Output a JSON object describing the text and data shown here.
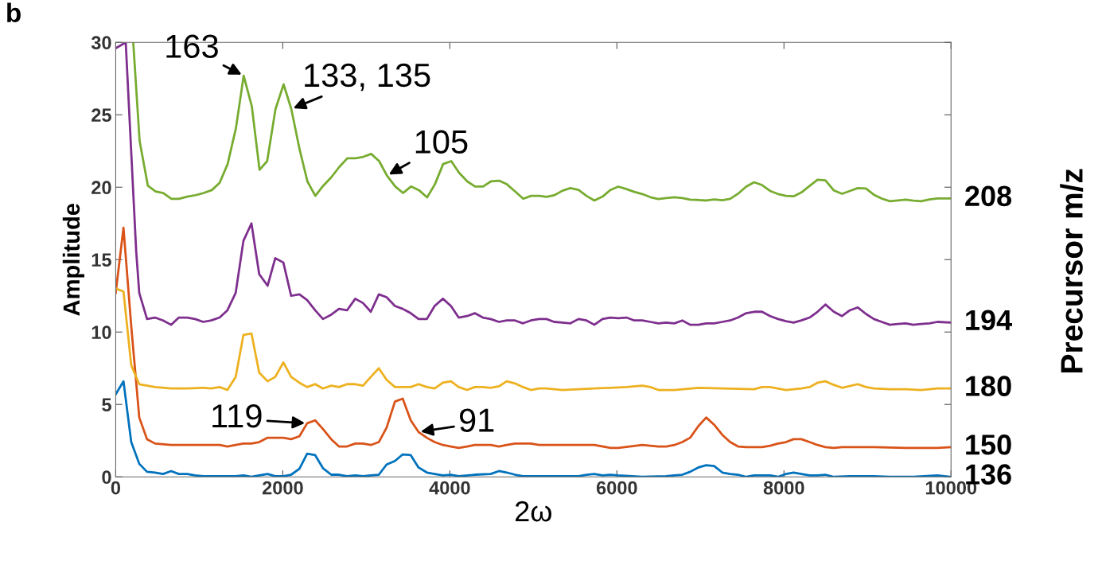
{
  "chart_data": {
    "type": "line",
    "xlabel": "2ω",
    "ylabel": "Amplitude",
    "y2label": "Precursor m/z",
    "xlim": [
      0,
      10000
    ],
    "ylim": [
      0,
      30
    ],
    "xticks": [
      0,
      2000,
      4000,
      6000,
      8000,
      10000
    ],
    "yticks": [
      0,
      5,
      10,
      15,
      20,
      25,
      30
    ],
    "grid": false,
    "legend": false,
    "marker": "none",
    "line_style": "solid",
    "annotations": [
      "b",
      {
        "text": "163",
        "x": 1532,
        "y": 27.7
      },
      {
        "text": "133, 135",
        "x": 2102,
        "y": 25.4
      },
      {
        "text": "105",
        "x": 3247,
        "y": 20.8
      },
      {
        "text": "119",
        "x": 2292,
        "y": 3.7
      },
      {
        "text": "91",
        "x": 3625,
        "y": 3.1
      }
    ],
    "series": [
      {
        "name": "136",
        "color": "#0072bd",
        "x": [
          0,
          93,
          186,
          282,
          375,
          471,
          567,
          663,
          756,
          856,
          949,
          1048,
          1244,
          1436,
          1529,
          1625,
          1718,
          1818,
          1910,
          2007,
          2100,
          2199,
          2292,
          2388,
          2481,
          2580,
          2673,
          2769,
          2868,
          2961,
          3054,
          3150,
          3243,
          3343,
          3436,
          3532,
          3625,
          3725,
          3818,
          3917,
          4013,
          4106,
          4299,
          4488,
          4588,
          4681,
          4780,
          4876,
          5069,
          5349,
          5541,
          5636,
          5730,
          5828,
          5922,
          6017,
          6303,
          6590,
          6688,
          6783,
          6877,
          6975,
          7069,
          7164,
          7262,
          7356,
          7450,
          7548,
          7643,
          7835,
          7929,
          8024,
          8115,
          8209,
          8307,
          8402,
          8496,
          8597,
          8789,
          9076,
          9268,
          9548,
          9836,
          10000
        ],
        "values": [
          5.7,
          6.6,
          2.4,
          0.9,
          0.35,
          0.3,
          0.2,
          0.4,
          0.2,
          0.2,
          0.1,
          0.05,
          0.05,
          0.05,
          0.1,
          0.0,
          0.1,
          0.2,
          0.05,
          0.05,
          0.15,
          0.55,
          1.6,
          1.5,
          0.6,
          0.15,
          0.15,
          0.05,
          0.1,
          0.05,
          0.1,
          0.15,
          0.85,
          1.1,
          1.55,
          1.5,
          0.65,
          0.3,
          0.2,
          0.1,
          0.15,
          0.05,
          0.15,
          0.2,
          0.4,
          0.3,
          0.15,
          0.05,
          0.05,
          0.05,
          0.05,
          0.15,
          0.2,
          0.1,
          0.15,
          0.1,
          0.0,
          0.05,
          0.1,
          0.15,
          0.35,
          0.65,
          0.8,
          0.75,
          0.3,
          0.2,
          0.15,
          0.0,
          0.1,
          0.1,
          0.0,
          0.2,
          0.3,
          0.2,
          0.1,
          0.1,
          0.15,
          0.0,
          0.05,
          0.05,
          0.0,
          0.0,
          0.1,
          0.0
        ]
      },
      {
        "name": "150",
        "color": "#d95319",
        "x": [
          0,
          93,
          186,
          282,
          375,
          471,
          663,
          856,
          1048,
          1144,
          1244,
          1337,
          1436,
          1529,
          1625,
          1718,
          1818,
          1910,
          2007,
          2100,
          2199,
          2292,
          2388,
          2481,
          2580,
          2673,
          2769,
          2868,
          2961,
          3054,
          3150,
          3243,
          3343,
          3436,
          3532,
          3625,
          3725,
          3818,
          3917,
          4013,
          4106,
          4206,
          4299,
          4395,
          4488,
          4588,
          4681,
          4780,
          4876,
          4969,
          5069,
          5157,
          5349,
          5443,
          5541,
          5730,
          5922,
          6017,
          6303,
          6496,
          6590,
          6688,
          6783,
          6877,
          6975,
          7069,
          7164,
          7262,
          7356,
          7450,
          7548,
          7737,
          7835,
          7929,
          8024,
          8115,
          8209,
          8307,
          8402,
          8496,
          8597,
          8695,
          9076,
          9457,
          9642,
          9836,
          10000
        ],
        "values": [
          12.7,
          17.2,
          10.4,
          4.1,
          2.6,
          2.3,
          2.2,
          2.2,
          2.2,
          2.2,
          2.2,
          2.1,
          2.2,
          2.3,
          2.3,
          2.4,
          2.7,
          2.7,
          2.7,
          2.6,
          2.8,
          3.7,
          3.9,
          3.3,
          2.6,
          2.1,
          2.1,
          2.3,
          2.3,
          2.2,
          2.4,
          3.4,
          5.2,
          5.4,
          3.9,
          3.1,
          2.7,
          2.4,
          2.2,
          2.1,
          2.0,
          2.1,
          2.2,
          2.2,
          2.2,
          2.1,
          2.2,
          2.3,
          2.3,
          2.3,
          2.2,
          2.2,
          2.2,
          2.2,
          2.2,
          2.2,
          2.0,
          2.0,
          2.2,
          2.1,
          2.1,
          2.2,
          2.4,
          2.7,
          3.5,
          4.1,
          3.6,
          2.9,
          2.4,
          2.1,
          2.05,
          2.05,
          2.15,
          2.3,
          2.4,
          2.6,
          2.6,
          2.4,
          2.2,
          2.05,
          2.0,
          2.05,
          2.05,
          2.0,
          2.0,
          2.0,
          2.05
        ]
      },
      {
        "name": "180",
        "color": "#edb120",
        "x": [
          0,
          93,
          186,
          282,
          471,
          663,
          856,
          1048,
          1144,
          1244,
          1337,
          1436,
          1529,
          1625,
          1718,
          1818,
          1910,
          2007,
          2100,
          2199,
          2292,
          2388,
          2481,
          2580,
          2673,
          2769,
          2868,
          2961,
          3054,
          3150,
          3243,
          3343,
          3436,
          3532,
          3625,
          3725,
          3818,
          3917,
          4013,
          4106,
          4206,
          4299,
          4395,
          4488,
          4588,
          4681,
          4780,
          4876,
          4969,
          5069,
          5157,
          5349,
          5541,
          5730,
          5922,
          6115,
          6303,
          6401,
          6496,
          6688,
          6975,
          7262,
          7643,
          7737,
          7835,
          8024,
          8209,
          8307,
          8402,
          8496,
          8597,
          8695,
          8884,
          8982,
          9076,
          9268,
          9457,
          9642,
          9836,
          10000
        ],
        "values": [
          13.0,
          12.8,
          7.7,
          6.4,
          6.2,
          6.1,
          6.1,
          6.15,
          6.1,
          6.2,
          6.0,
          6.9,
          9.8,
          9.9,
          7.2,
          6.6,
          6.9,
          7.9,
          6.9,
          6.5,
          6.2,
          6.4,
          6.1,
          6.3,
          6.2,
          6.4,
          6.4,
          6.3,
          6.9,
          7.5,
          6.7,
          6.2,
          6.2,
          6.2,
          6.4,
          6.2,
          6.1,
          6.5,
          6.6,
          6.2,
          6.0,
          6.2,
          6.2,
          6.15,
          6.25,
          6.6,
          6.45,
          6.2,
          6.0,
          6.1,
          6.1,
          6.0,
          6.05,
          6.1,
          6.15,
          6.2,
          6.3,
          6.2,
          6.0,
          6.0,
          6.15,
          6.1,
          6.05,
          6.2,
          6.2,
          6.0,
          6.1,
          6.2,
          6.5,
          6.6,
          6.35,
          6.15,
          6.4,
          6.2,
          6.1,
          6.05,
          6.05,
          6.0,
          6.1,
          6.1
        ]
      },
      {
        "name": "194",
        "color": "#7e2f8e",
        "x": [
          0,
          120,
          245,
          282,
          375,
          471,
          567,
          663,
          756,
          856,
          949,
          1048,
          1144,
          1244,
          1337,
          1436,
          1529,
          1625,
          1718,
          1818,
          1910,
          2007,
          2100,
          2199,
          2292,
          2388,
          2481,
          2580,
          2673,
          2769,
          2868,
          2961,
          3054,
          3150,
          3243,
          3343,
          3436,
          3532,
          3625,
          3725,
          3818,
          3917,
          4013,
          4106,
          4206,
          4299,
          4395,
          4488,
          4588,
          4681,
          4780,
          4876,
          4969,
          5069,
          5157,
          5248,
          5349,
          5443,
          5541,
          5636,
          5730,
          5828,
          5922,
          6017,
          6115,
          6209,
          6303,
          6401,
          6496,
          6590,
          6688,
          6783,
          6877,
          6975,
          7069,
          7164,
          7262,
          7356,
          7450,
          7548,
          7643,
          7737,
          7835,
          7929,
          8024,
          8115,
          8209,
          8307,
          8402,
          8496,
          8597,
          8695,
          8789,
          8884,
          8982,
          9076,
          9170,
          9268,
          9363,
          9457,
          9548,
          9642,
          9741,
          9836,
          10000
        ],
        "values": [
          29.6,
          30,
          15.6,
          12.7,
          10.9,
          11.0,
          10.8,
          10.5,
          11.0,
          11.0,
          10.9,
          10.7,
          10.8,
          11.0,
          11.5,
          12.7,
          16.3,
          17.5,
          14.0,
          13.2,
          15.1,
          14.8,
          12.5,
          12.6,
          12.2,
          11.5,
          10.9,
          11.2,
          11.6,
          11.5,
          12.3,
          12.0,
          11.4,
          12.6,
          12.4,
          11.8,
          11.6,
          11.3,
          10.9,
          10.9,
          11.8,
          12.3,
          11.8,
          11.0,
          11.1,
          11.3,
          11.0,
          10.9,
          10.7,
          10.8,
          10.8,
          10.6,
          10.8,
          10.9,
          10.9,
          10.7,
          10.65,
          10.6,
          10.9,
          10.8,
          10.5,
          10.9,
          11.0,
          10.95,
          11.0,
          10.8,
          10.8,
          10.7,
          10.6,
          10.65,
          10.6,
          10.8,
          10.5,
          10.5,
          10.6,
          10.6,
          10.7,
          10.8,
          11.0,
          11.3,
          11.4,
          11.4,
          11.1,
          10.9,
          10.75,
          10.65,
          10.8,
          11.0,
          11.4,
          11.9,
          11.4,
          11.1,
          11.5,
          11.7,
          11.25,
          10.9,
          10.7,
          10.5,
          10.55,
          10.6,
          10.5,
          10.55,
          10.6,
          10.7,
          10.65
        ]
      },
      {
        "name": "208",
        "color": "#77ac30",
        "x": [
          210,
          286,
          385,
          478,
          570,
          667,
          756,
          856,
          955,
          1052,
          1151,
          1244,
          1340,
          1440,
          1532,
          1629,
          1722,
          1813,
          1913,
          2010,
          2102,
          2202,
          2295,
          2390,
          2484,
          2583,
          2677,
          2773,
          2872,
          2965,
          3058,
          3154,
          3247,
          3347,
          3440,
          3535,
          3629,
          3728,
          3821,
          3920,
          4017,
          4110,
          4209,
          4302,
          4398,
          4491,
          4590,
          4683,
          4783,
          4879,
          4972,
          5071,
          5157,
          5248,
          5349,
          5443,
          5541,
          5636,
          5730,
          5828,
          5922,
          6017,
          6115,
          6209,
          6303,
          6401,
          6496,
          6590,
          6688,
          6783,
          6877,
          6975,
          7069,
          7164,
          7262,
          7356,
          7450,
          7548,
          7643,
          7737,
          7835,
          7929,
          8024,
          8115,
          8209,
          8307,
          8402,
          8496,
          8597,
          8695,
          8789,
          8884,
          8982,
          9076,
          9170,
          9268,
          9363,
          9457,
          9548,
          9642,
          9741,
          9836,
          10000
        ],
        "values": [
          30,
          23.2,
          20.1,
          19.7,
          19.6,
          19.2,
          19.2,
          19.35,
          19.45,
          19.6,
          19.8,
          20.3,
          21.6,
          24.1,
          27.7,
          25.6,
          21.2,
          21.8,
          25.4,
          27.1,
          25.4,
          22.6,
          20.4,
          19.4,
          20.1,
          20.7,
          21.4,
          22.0,
          22.0,
          22.1,
          22.3,
          21.8,
          20.8,
          20.05,
          19.6,
          20.05,
          19.8,
          19.3,
          20.2,
          21.6,
          21.8,
          21.0,
          20.4,
          20.05,
          20.05,
          20.4,
          20.45,
          20.2,
          19.7,
          19.2,
          19.4,
          19.4,
          19.33,
          19.44,
          19.76,
          19.94,
          19.81,
          19.4,
          19.08,
          19.35,
          19.81,
          20.04,
          19.87,
          19.68,
          19.53,
          19.31,
          19.18,
          19.25,
          19.31,
          19.25,
          19.14,
          19.12,
          19.08,
          19.16,
          19.1,
          19.2,
          19.55,
          20.04,
          20.34,
          20.15,
          19.74,
          19.53,
          19.4,
          19.37,
          19.64,
          20.09,
          20.52,
          20.47,
          19.78,
          19.55,
          19.74,
          19.94,
          19.91,
          19.48,
          19.22,
          19.03,
          19.08,
          19.14,
          19.07,
          19.03,
          19.16,
          19.22,
          19.22
        ]
      }
    ]
  }
}
